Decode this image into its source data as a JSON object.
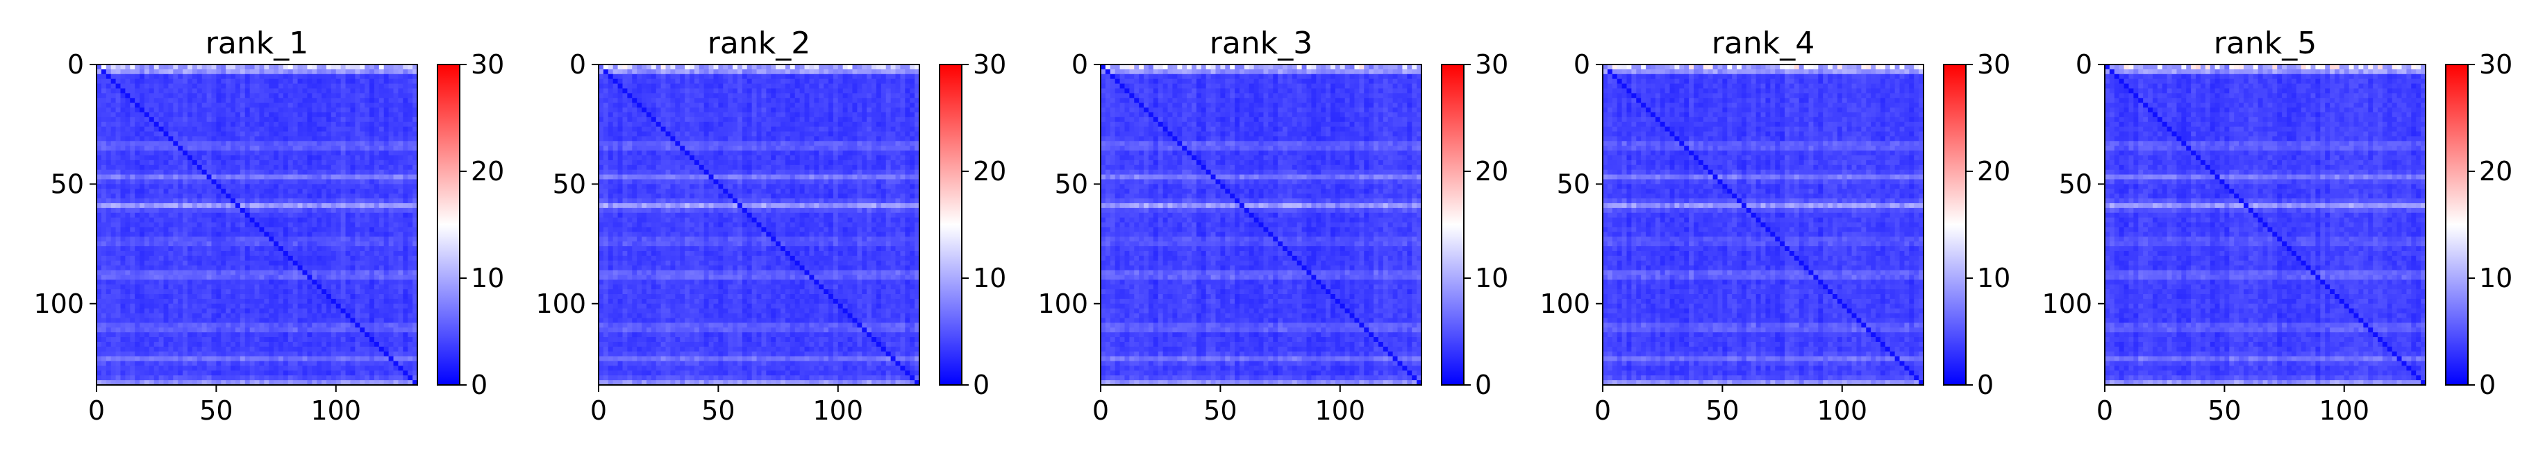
{
  "chart_data": [
    {
      "type": "heatmap",
      "title": "rank_1",
      "x_ticks": [
        0,
        50,
        100
      ],
      "y_ticks": [
        0,
        50,
        100
      ],
      "xlim": [
        0,
        134
      ],
      "ylim": [
        134,
        0
      ],
      "colorbar": {
        "colormap": "bwr",
        "range": [
          0,
          30
        ],
        "ticks": [
          0,
          10,
          20,
          30
        ]
      },
      "values_description": "mostly low values (~2-6) with brighter horizontal bands near rows 2, 34, 47, 59, 88, 110, 123; diagonal slightly lower"
    },
    {
      "type": "heatmap",
      "title": "rank_2",
      "x_ticks": [
        0,
        50,
        100
      ],
      "y_ticks": [
        0,
        50,
        100
      ],
      "xlim": [
        0,
        134
      ],
      "ylim": [
        134,
        0
      ],
      "colorbar": {
        "colormap": "bwr",
        "range": [
          0,
          30
        ],
        "ticks": [
          0,
          10,
          20,
          30
        ]
      }
    },
    {
      "type": "heatmap",
      "title": "rank_3",
      "x_ticks": [
        0,
        50,
        100
      ],
      "y_ticks": [
        0,
        50,
        100
      ],
      "xlim": [
        0,
        134
      ],
      "ylim": [
        134,
        0
      ],
      "colorbar": {
        "colormap": "bwr",
        "range": [
          0,
          30
        ],
        "ticks": [
          0,
          10,
          20,
          30
        ]
      }
    },
    {
      "type": "heatmap",
      "title": "rank_4",
      "x_ticks": [
        0,
        50,
        100
      ],
      "y_ticks": [
        0,
        50,
        100
      ],
      "xlim": [
        0,
        134
      ],
      "ylim": [
        134,
        0
      ],
      "colorbar": {
        "colormap": "bwr",
        "range": [
          0,
          30
        ],
        "ticks": [
          0,
          10,
          20,
          30
        ]
      }
    },
    {
      "type": "heatmap",
      "title": "rank_5",
      "x_ticks": [
        0,
        50,
        100
      ],
      "y_ticks": [
        0,
        50,
        100
      ],
      "xlim": [
        0,
        134
      ],
      "ylim": [
        134,
        0
      ],
      "colorbar": {
        "colormap": "bwr",
        "range": [
          0,
          30
        ],
        "ticks": [
          0,
          10,
          20,
          30
        ]
      }
    }
  ],
  "colors": {
    "low": "#0000ff",
    "mid": "#ffffff",
    "high": "#ff0000"
  }
}
